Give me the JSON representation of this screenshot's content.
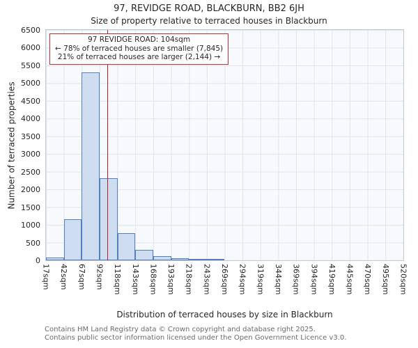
{
  "title": "97, REVIDGE ROAD, BLACKBURN, BB2 6JH",
  "subtitle": "Size of property relative to terraced houses in Blackburn",
  "chart_data": {
    "type": "bar",
    "xlabel": "Distribution of terraced houses by size in Blackburn",
    "ylabel": "Number of terraced properties",
    "ylim": [
      0,
      6500
    ],
    "y_tick_step": 500,
    "x_min": 17,
    "x_max": 520,
    "x_ticks": [
      "17sqm",
      "42sqm",
      "67sqm",
      "92sqm",
      "118sqm",
      "143sqm",
      "168sqm",
      "193sqm",
      "218sqm",
      "243sqm",
      "269sqm",
      "294sqm",
      "319sqm",
      "344sqm",
      "369sqm",
      "394sqm",
      "419sqm",
      "445sqm",
      "470sqm",
      "495sqm",
      "520sqm"
    ],
    "bin_edges_sqm": [
      17,
      42,
      67,
      92,
      118,
      143,
      168,
      193,
      218,
      243,
      269,
      294,
      319,
      344,
      369,
      394,
      419,
      445,
      470,
      495,
      520
    ],
    "values": [
      75,
      1150,
      5300,
      2320,
      775,
      290,
      120,
      55,
      45,
      30,
      0,
      0,
      0,
      0,
      0,
      0,
      0,
      0,
      0,
      0
    ],
    "grid": true,
    "legend": "none",
    "marker_value_sqm": 104,
    "annotation": {
      "line1": "97 REVIDGE ROAD: 104sqm",
      "line2": "← 78% of terraced houses are smaller (7,845)",
      "line3": "21% of terraced houses are larger (2,144) →"
    },
    "colors": {
      "bar_fill": "#cfddf1",
      "bar_border": "#567fbe",
      "marker": "#aa2222",
      "annotation_border": "#c03030",
      "grid": "#dde4f0"
    }
  },
  "footer": {
    "line1": "Contains HM Land Registry data © Crown copyright and database right 2025.",
    "line2": "Contains public sector information licensed under the Open Government Licence v3.0."
  }
}
